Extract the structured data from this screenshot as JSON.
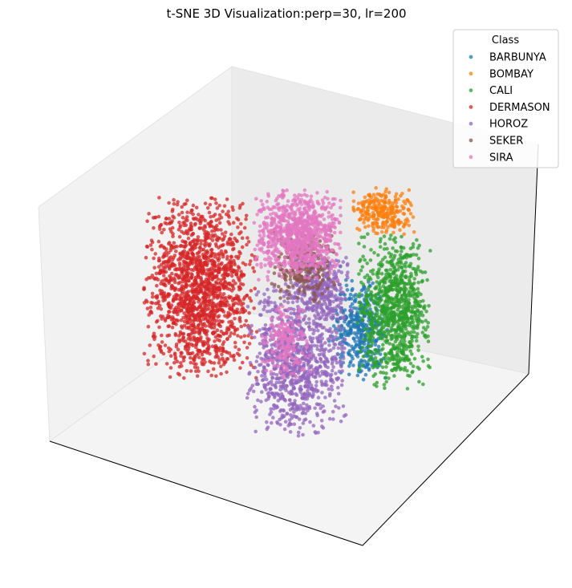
{
  "chart_data": {
    "type": "scatter",
    "title": "t-SNE 3D Visualization:perp=30, lr=200",
    "legend": {
      "title": "Class",
      "placement": "top-right"
    },
    "axes": {
      "ticks": "none",
      "grid": false,
      "projection": "3d"
    },
    "series": [
      {
        "name": "BARBUNYA",
        "color": "#1f77b4",
        "clusters": [
          {
            "cx": 0.63,
            "cy": 0.56,
            "rx": 0.045,
            "ry": 0.085,
            "n": 380
          }
        ]
      },
      {
        "name": "BOMBAY",
        "color": "#ff7f0e",
        "clusters": [
          {
            "cx": 0.67,
            "cy": 0.36,
            "rx": 0.05,
            "ry": 0.035,
            "n": 260
          }
        ]
      },
      {
        "name": "CALI",
        "color": "#2ca02c",
        "clusters": [
          {
            "cx": 0.69,
            "cy": 0.53,
            "rx": 0.06,
            "ry": 0.12,
            "n": 900
          }
        ]
      },
      {
        "name": "DERMASON",
        "color": "#d62728",
        "clusters": [
          {
            "cx": 0.35,
            "cy": 0.49,
            "rx": 0.09,
            "ry": 0.14,
            "n": 1600
          }
        ]
      },
      {
        "name": "HOROZ",
        "color": "#9467bd",
        "clusters": [
          {
            "cx": 0.52,
            "cy": 0.61,
            "rx": 0.08,
            "ry": 0.12,
            "n": 1000
          },
          {
            "cx": 0.56,
            "cy": 0.49,
            "rx": 0.05,
            "ry": 0.05,
            "n": 300
          }
        ]
      },
      {
        "name": "SEKER",
        "color": "#8c564b",
        "clusters": [
          {
            "cx": 0.53,
            "cy": 0.45,
            "rx": 0.05,
            "ry": 0.06,
            "n": 250
          }
        ]
      },
      {
        "name": "SIRA",
        "color": "#e377c2",
        "clusters": [
          {
            "cx": 0.52,
            "cy": 0.4,
            "rx": 0.07,
            "ry": 0.07,
            "n": 900
          },
          {
            "cx": 0.5,
            "cy": 0.58,
            "rx": 0.04,
            "ry": 0.06,
            "n": 180
          }
        ]
      }
    ]
  }
}
